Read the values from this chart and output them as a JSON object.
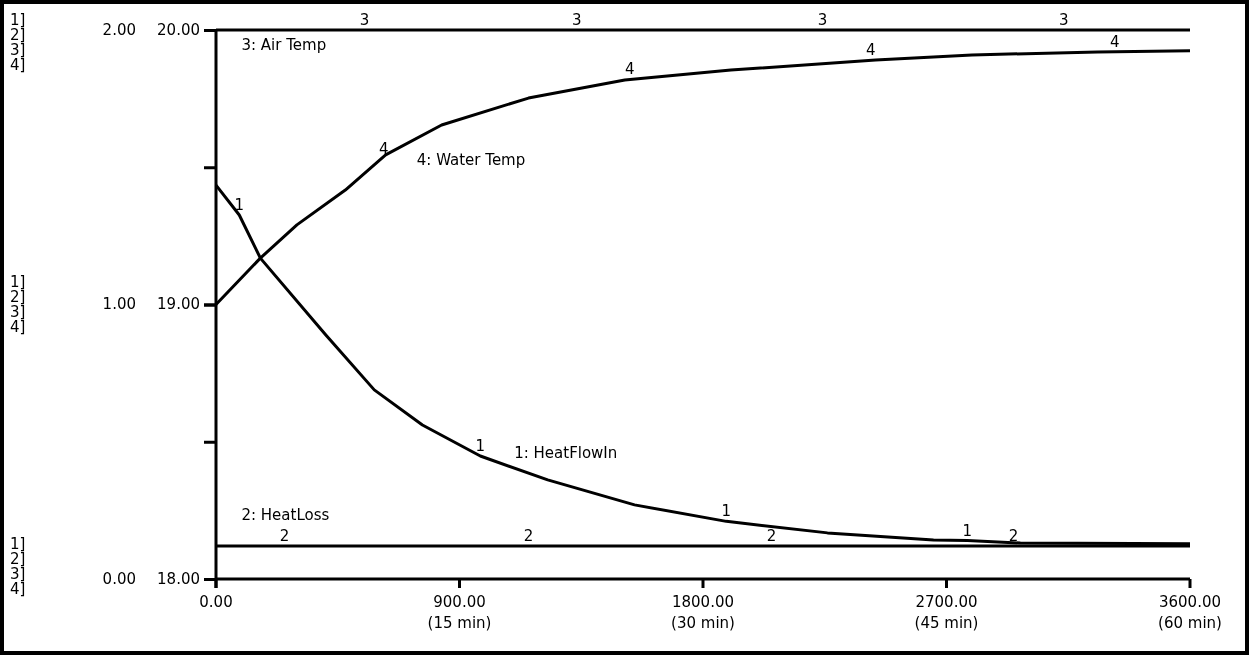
{
  "chart_data": {
    "type": "line",
    "xlim": [
      0,
      3600
    ],
    "xticks": [
      {
        "value": 0,
        "label": "0.00"
      },
      {
        "value": 900,
        "label": "900.00"
      },
      {
        "value": 1800,
        "label": "1800.00"
      },
      {
        "value": 2700,
        "label": "2700.00"
      },
      {
        "value": 3600,
        "label": "3600.00"
      }
    ],
    "annotations": [
      "1]",
      "2]",
      "3]",
      "4]",
      "1]",
      "2]",
      "3]",
      "4]",
      "1]",
      "2]",
      "3]",
      "4]",
      "(15 min)",
      "(30 min)",
      "(45 min)",
      "(60 min)",
      {
        "text": "1",
        "x": 86,
        "y": 1.326
      },
      {
        "text": "1",
        "x": 977,
        "y": 0.448
      },
      {
        "text": "1",
        "x": 1886,
        "y": 0.21
      },
      {
        "text": "1",
        "x": 2777,
        "y": 0.14
      },
      {
        "text": "2",
        "x": 253,
        "y": 0.12
      },
      {
        "text": "2",
        "x": 1155,
        "y": 0.12
      },
      {
        "text": "2",
        "x": 2053,
        "y": 0.12
      },
      {
        "text": "2",
        "x": 2948,
        "y": 0.12
      },
      {
        "text": "3",
        "x": 549,
        "y": 2
      },
      {
        "text": "3",
        "x": 1333,
        "y": 2
      },
      {
        "text": "3",
        "x": 2242,
        "y": 2
      },
      {
        "text": "3",
        "x": 3133,
        "y": 2
      },
      {
        "text": "4",
        "x": 620,
        "y": 1.53
      },
      {
        "text": "4",
        "x": 1529,
        "y": 1.82
      },
      {
        "text": "4",
        "x": 2420,
        "y": 1.89
      },
      {
        "text": "4",
        "x": 3322,
        "y": 1.92
      }
    ],
    "ylim": [
      0,
      2
    ],
    "yticks": [
      {
        "value": 0,
        "label": "0.00"
      },
      {
        "value": 0.5,
        "label": null
      },
      {
        "value": 1,
        "label": "1.00"
      },
      {
        "value": 1.5,
        "label": null
      },
      {
        "value": 2,
        "label": "2.00"
      }
    ],
    "y2lim": [
      18,
      20
    ],
    "y2ticks": [
      {
        "value": 18,
        "label": "18.00"
      },
      {
        "value": 19,
        "label": "19.00"
      },
      {
        "value": 20,
        "label": "20.00"
      }
    ],
    "grid": false,
    "legend": false,
    "line_style": "solid",
    "series": [
      {
        "name": "1: HeatFlowIn",
        "color": "#000000",
        "x": [
          0,
          86,
          164,
          406,
          585,
          763,
          977,
          1226,
          1547,
          1886,
          2260,
          2652,
          2777,
          2973,
          3600
        ],
        "values": [
          1.435,
          1.326,
          1.169,
          0.889,
          0.689,
          0.561,
          0.448,
          0.361,
          0.27,
          0.21,
          0.168,
          0.142,
          0.14,
          0.131,
          0.128
        ]
      },
      {
        "name": "2: HeatLoss",
        "color": "#000000",
        "x": [
          0,
          253,
          1155,
          2053,
          2948,
          3600
        ],
        "values": [
          0.12,
          0.12,
          0.12,
          0.12,
          0.12,
          0.12
        ]
      },
      {
        "name": "3: Air Temp",
        "color": "#000000",
        "axis": "y2",
        "x": [
          0,
          3600
        ],
        "values": [
          20,
          20
        ]
      },
      {
        "name": "4: Water Temp",
        "color": "#000000",
        "axis": "y2",
        "x": [
          0,
          164,
          299,
          478,
          627,
          834,
          1155,
          1511,
          1903,
          2438,
          2794,
          3258,
          3600
        ],
        "values": [
          19.0,
          19.169,
          19.29,
          19.417,
          19.545,
          19.654,
          19.752,
          19.818,
          19.854,
          19.891,
          19.909,
          19.92,
          19.924
        ]
      }
    ]
  }
}
